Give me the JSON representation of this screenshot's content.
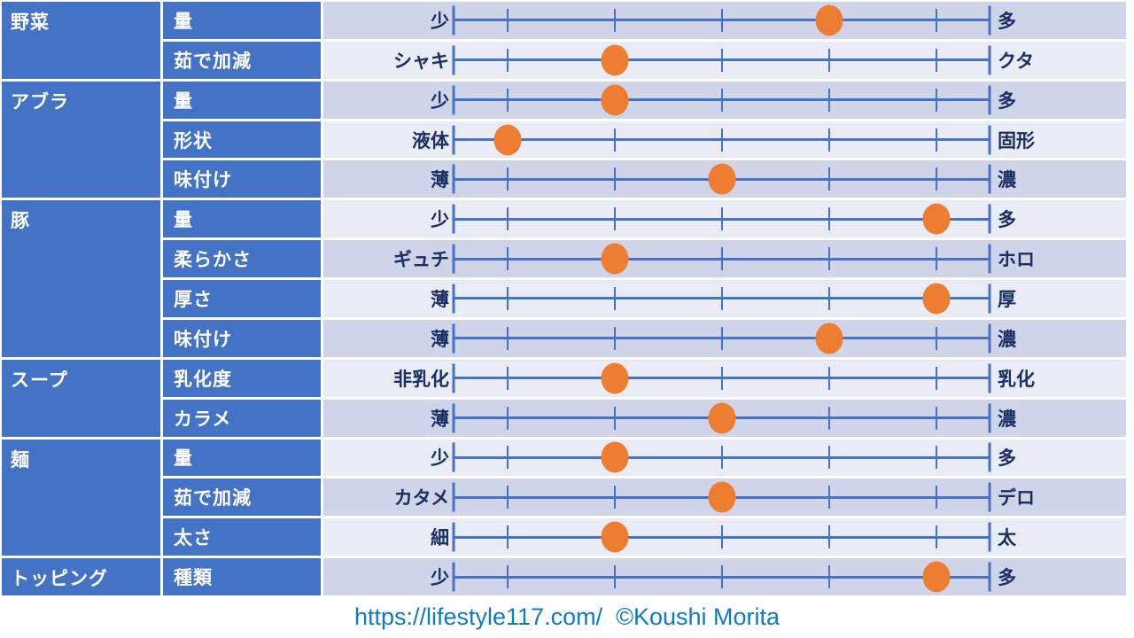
{
  "chart_data": {
    "type": "table",
    "title": "",
    "scale": {
      "min_level": 1,
      "max_level": 5,
      "level_positions_percent": [
        10,
        30,
        50,
        70,
        90
      ],
      "end_ticks": true
    },
    "groups": [
      {
        "category": "野菜",
        "rows": [
          {
            "attribute": "量",
            "left_label": "少",
            "right_label": "多",
            "value": 4
          },
          {
            "attribute": "茹で加減",
            "left_label": "シャキ",
            "right_label": "クタ",
            "value": 2
          }
        ]
      },
      {
        "category": "アブラ",
        "rows": [
          {
            "attribute": "量",
            "left_label": "少",
            "right_label": "多",
            "value": 2
          },
          {
            "attribute": "形状",
            "left_label": "液体",
            "right_label": "固形",
            "value": 1
          },
          {
            "attribute": "味付け",
            "left_label": "薄",
            "right_label": "濃",
            "value": 3
          }
        ]
      },
      {
        "category": "豚",
        "rows": [
          {
            "attribute": "量",
            "left_label": "少",
            "right_label": "多",
            "value": 5
          },
          {
            "attribute": "柔らかさ",
            "left_label": "ギュチ",
            "right_label": "ホロ",
            "value": 2
          },
          {
            "attribute": "厚さ",
            "left_label": "薄",
            "right_label": "厚",
            "value": 5
          },
          {
            "attribute": "味付け",
            "left_label": "薄",
            "right_label": "濃",
            "value": 4
          }
        ]
      },
      {
        "category": "スープ",
        "rows": [
          {
            "attribute": "乳化度",
            "left_label": "非乳化",
            "right_label": "乳化",
            "value": 2
          },
          {
            "attribute": "カラメ",
            "left_label": "薄",
            "right_label": "濃",
            "value": 3
          }
        ]
      },
      {
        "category": "麺",
        "rows": [
          {
            "attribute": "量",
            "left_label": "少",
            "right_label": "多",
            "value": 2
          },
          {
            "attribute": "茹で加減",
            "left_label": "カタメ",
            "right_label": "デロ",
            "value": 3
          },
          {
            "attribute": "太さ",
            "left_label": "細",
            "right_label": "太",
            "value": 2
          }
        ]
      },
      {
        "category": "トッピング",
        "rows": [
          {
            "attribute": "種類",
            "left_label": "少",
            "right_label": "多",
            "value": 5
          }
        ]
      }
    ]
  },
  "footer": {
    "credit": "https://lifestyle117.com/  ©Koushi Morita"
  },
  "colors": {
    "cell_blue": "#4472c4",
    "band_dark": "#cfd4e9",
    "band_light": "#e9ebf5",
    "line_blue": "#4472c4",
    "dot_orange": "#ed7d31",
    "label_navy": "#1a2f63",
    "credit_blue": "#0e7ac4"
  }
}
